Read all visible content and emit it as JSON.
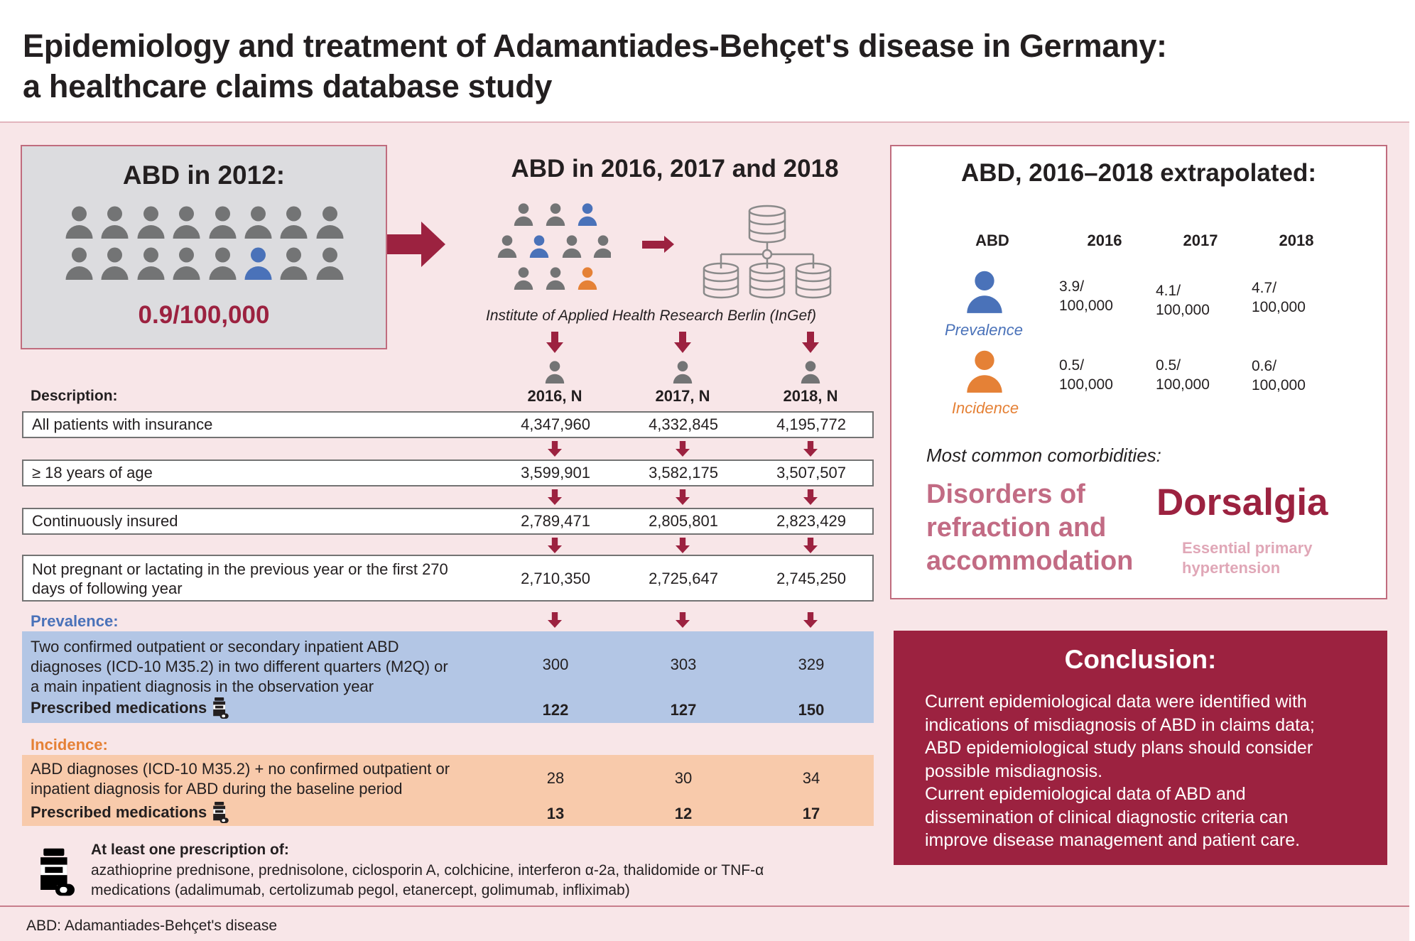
{
  "header": {
    "title_lines": [
      "Epidemiology and treatment of Adamantiades-Behçet's disease in Germany:",
      "a healthcare claims database study"
    ]
  },
  "colors": {
    "accent": "#9c2240",
    "prevalence": "#4a72b9",
    "incidence": "#e58136",
    "person_gray": "#737475",
    "prevalence_band": "#b3c6e5",
    "incidence_band": "#f8caab",
    "background": "#f8e6e8"
  },
  "box2012": {
    "title": "ABD in 2012:",
    "rate": "0.9/100,000",
    "people_total": 16,
    "highlighted_index": 13
  },
  "middle": {
    "title": "ABD in 2016, 2017 and 2018",
    "source": "Institute of Applied Health Research Berlin (InGef)"
  },
  "table": {
    "description_header": "Description:",
    "years": [
      "2016, N",
      "2017, N",
      "2018, N"
    ],
    "rows": [
      {
        "label": "All patients with insurance",
        "values": [
          "4,347,960",
          "4,332,845",
          "4,195,772"
        ]
      },
      {
        "label": "≥ 18 years of age",
        "values": [
          "3,599,901",
          "3,582,175",
          "3,507,507"
        ]
      },
      {
        "label": "Continuously insured",
        "values": [
          "2,789,471",
          "2,805,801",
          "2,823,429"
        ]
      },
      {
        "label_lines": [
          "Not pregnant or lactating in the previous year or the first 270",
          "days of following year"
        ],
        "values": [
          "2,710,350",
          "2,725,647",
          "2,745,250"
        ]
      }
    ],
    "prevalence": {
      "label": "Prevalence:",
      "text_lines": [
        "Two confirmed outpatient or secondary inpatient ABD",
        "diagnoses (ICD-10 M35.2) in two different quarters (M2Q) or",
        "a main inpatient diagnosis in the observation year"
      ],
      "values": [
        "300",
        "303",
        "329"
      ],
      "meds_label": "Prescribed medications",
      "meds_values": [
        "122",
        "127",
        "150"
      ]
    },
    "incidence": {
      "label": "Incidence:",
      "text_lines": [
        "ABD diagnoses (ICD-10 M35.2) + no confirmed outpatient or",
        "inpatient diagnosis for ABD during the baseline period"
      ],
      "values": [
        "28",
        "30",
        "34"
      ],
      "meds_label": "Prescribed medications",
      "meds_values": [
        "13",
        "12",
        "17"
      ]
    }
  },
  "med_note": {
    "title": "At least one prescription of:",
    "lines": [
      "azathioprine prednisone, prednisolone, ciclosporin A, colchicine, interferon α-2a, thalidomide or TNF-α",
      "medications (adalimumab, certolizumab pegol, etanercept, golimumab, infliximab)"
    ]
  },
  "footer": {
    "abbreviation": "ABD: Adamantiades-Behçet's disease"
  },
  "extrapolated": {
    "title": "ABD, 2016–2018 extrapolated:",
    "headers": [
      "ABD",
      "2016",
      "2017",
      "2018"
    ],
    "prevalence": {
      "caption": "Prevalence",
      "values": [
        [
          "3.9/",
          "100,000"
        ],
        [
          "4.1/",
          "100,000"
        ],
        [
          "4.7/",
          "100,000"
        ]
      ]
    },
    "incidence": {
      "caption": "Incidence",
      "values": [
        [
          "0.5/",
          "100,000"
        ],
        [
          "0.5/",
          "100,000"
        ],
        [
          "0.6/",
          "100,000"
        ]
      ]
    },
    "comorbidities_title": "Most common comorbidities:",
    "comorbidities": [
      {
        "name_lines": [
          "Disorders of",
          "refraction and",
          "accommodation"
        ],
        "color": "#c26b84"
      },
      {
        "name_lines": [
          "Dorsalgia"
        ],
        "color": "#9c2240"
      },
      {
        "name_lines": [
          "Essential primary",
          "hypertension"
        ],
        "color": "#e0a7b7"
      }
    ]
  },
  "conclusion": {
    "title": "Conclusion:",
    "lines": [
      "Current epidemiological data were identified with",
      "indications of misdiagnosis of ABD in claims data;",
      "ABD epidemiological study plans should consider",
      "possible misdiagnosis.",
      "Current epidemiological data of ABD and",
      "dissemination of clinical diagnostic criteria can",
      "improve disease management and patient care."
    ]
  }
}
